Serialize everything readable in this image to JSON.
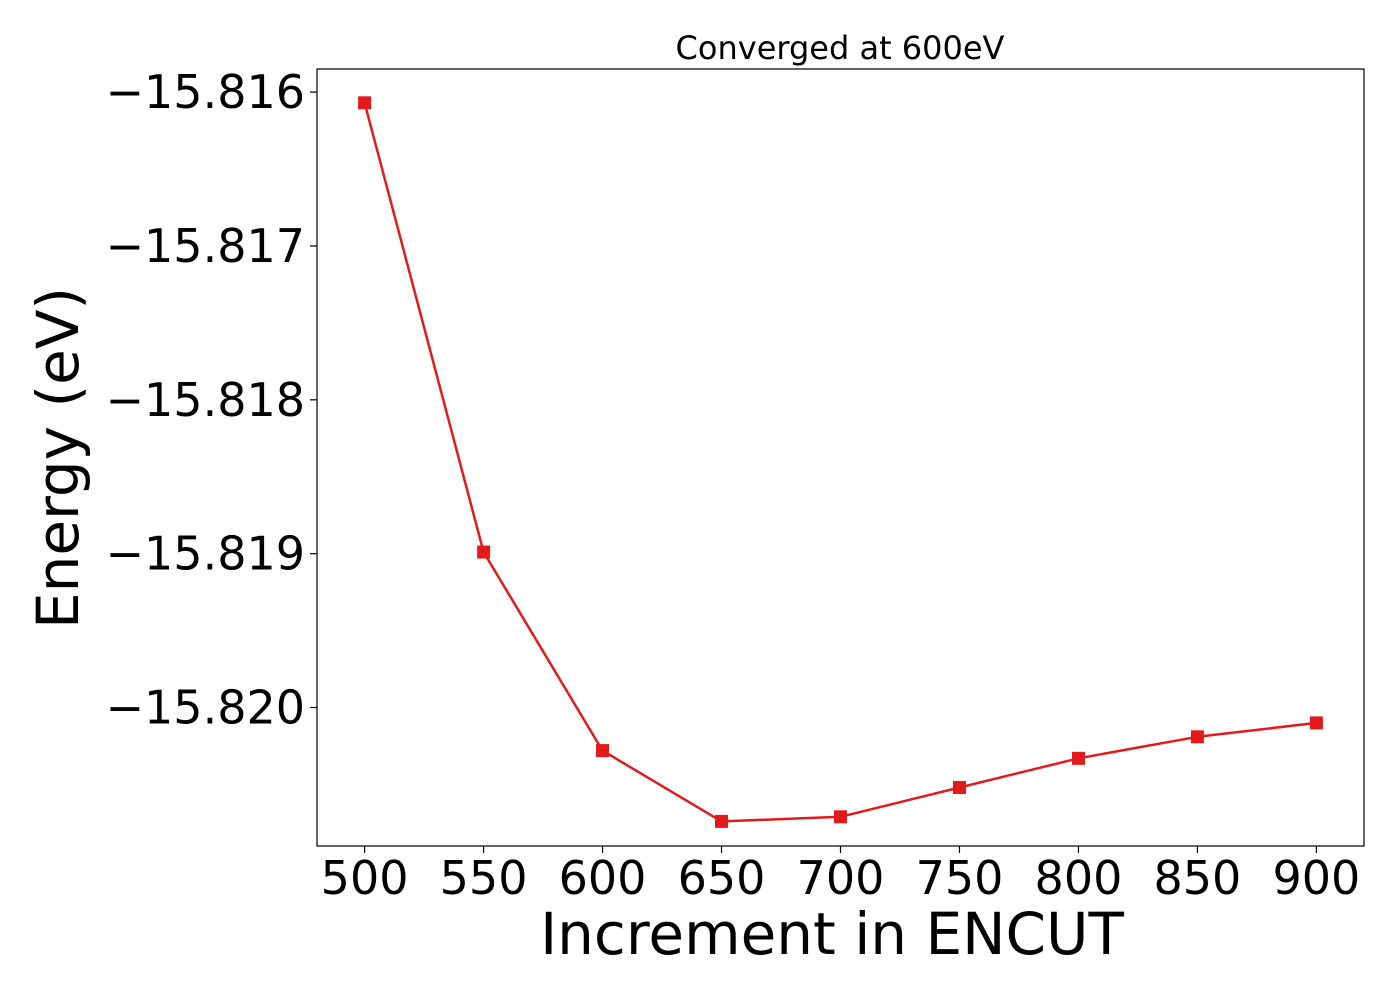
{
  "chart_data": {
    "type": "line",
    "title": "Converged at 600eV",
    "xlabel": "Increment in ENCUT",
    "ylabel": "Energy (eV)",
    "x": [
      500,
      550,
      600,
      650,
      700,
      750,
      800,
      850,
      900
    ],
    "series": [
      {
        "values": [
          -15.81607,
          -15.81899,
          -15.82028,
          -15.82074,
          -15.82071,
          -15.82052,
          -15.82033,
          -15.82019,
          -15.8201
        ],
        "color": "#e31a1c",
        "marker": "square"
      }
    ],
    "xticks": [
      500,
      550,
      600,
      650,
      700,
      750,
      800,
      850,
      900
    ],
    "xtick_labels": [
      "500",
      "550",
      "600",
      "650",
      "700",
      "750",
      "800",
      "850",
      "900"
    ],
    "yticks": [
      -15.816,
      -15.817,
      -15.818,
      -15.819,
      -15.82
    ],
    "ytick_labels": [
      "−15.816",
      "−15.817",
      "−15.818",
      "−15.819",
      "−15.820"
    ],
    "xlim": [
      480,
      920
    ],
    "ylim": [
      -15.8209,
      -15.81585
    ],
    "grid": false,
    "legend": false
  }
}
